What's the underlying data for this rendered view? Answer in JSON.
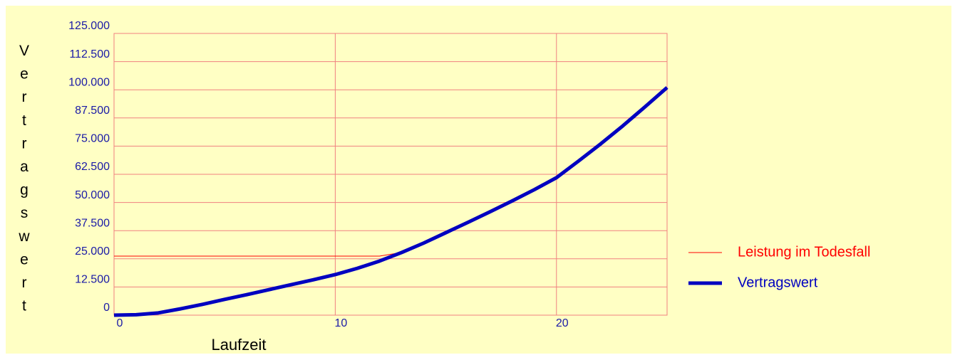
{
  "chart_data": {
    "type": "line",
    "xlabel": "Laufzeit",
    "ylabel": "Vertragswert",
    "x": [
      0,
      1,
      2,
      3,
      4,
      5,
      6,
      7,
      8,
      9,
      10,
      11,
      12,
      13,
      14,
      15,
      16,
      17,
      18,
      19,
      20,
      21,
      22,
      23,
      24,
      25
    ],
    "series": [
      {
        "name": "Leistung im Todesfall",
        "color": "#ff0000",
        "values": [
          26200,
          26200,
          26200,
          26200,
          26200,
          26200,
          26200,
          26200,
          26200,
          26200,
          26200,
          26200,
          26200,
          27800,
          32000,
          36600,
          41200,
          45900,
          50700,
          55700,
          61000,
          68400,
          76000,
          84000,
          92400,
          101000
        ]
      },
      {
        "name": "Vertragswert",
        "color": "#0000c0",
        "values": [
          0,
          200,
          1000,
          2800,
          4800,
          7000,
          9100,
          11300,
          13500,
          15700,
          18000,
          20800,
          24000,
          27800,
          32000,
          36600,
          41200,
          45900,
          50700,
          55700,
          61000,
          68400,
          76000,
          84000,
          92400,
          101000
        ]
      }
    ],
    "xlim": [
      0,
      25
    ],
    "xticks": [
      0,
      10,
      20
    ],
    "ylim": [
      0,
      125000
    ],
    "yticks": [
      0,
      {
        "value": 12500,
        "label": "12.500"
      },
      {
        "value": 25000,
        "label": "25.000"
      },
      {
        "value": 37500,
        "label": "37.500"
      },
      {
        "value": 50000,
        "label": "50.000"
      },
      {
        "value": 62500,
        "label": "62.500"
      },
      {
        "value": 75000,
        "label": "75.000"
      },
      {
        "value": 87500,
        "label": "87.500"
      },
      {
        "value": 100000,
        "label": "100.000"
      },
      {
        "value": 112500,
        "label": "112.500"
      },
      {
        "value": 125000,
        "label": "125.000"
      }
    ],
    "grid": true,
    "legend": "right"
  }
}
